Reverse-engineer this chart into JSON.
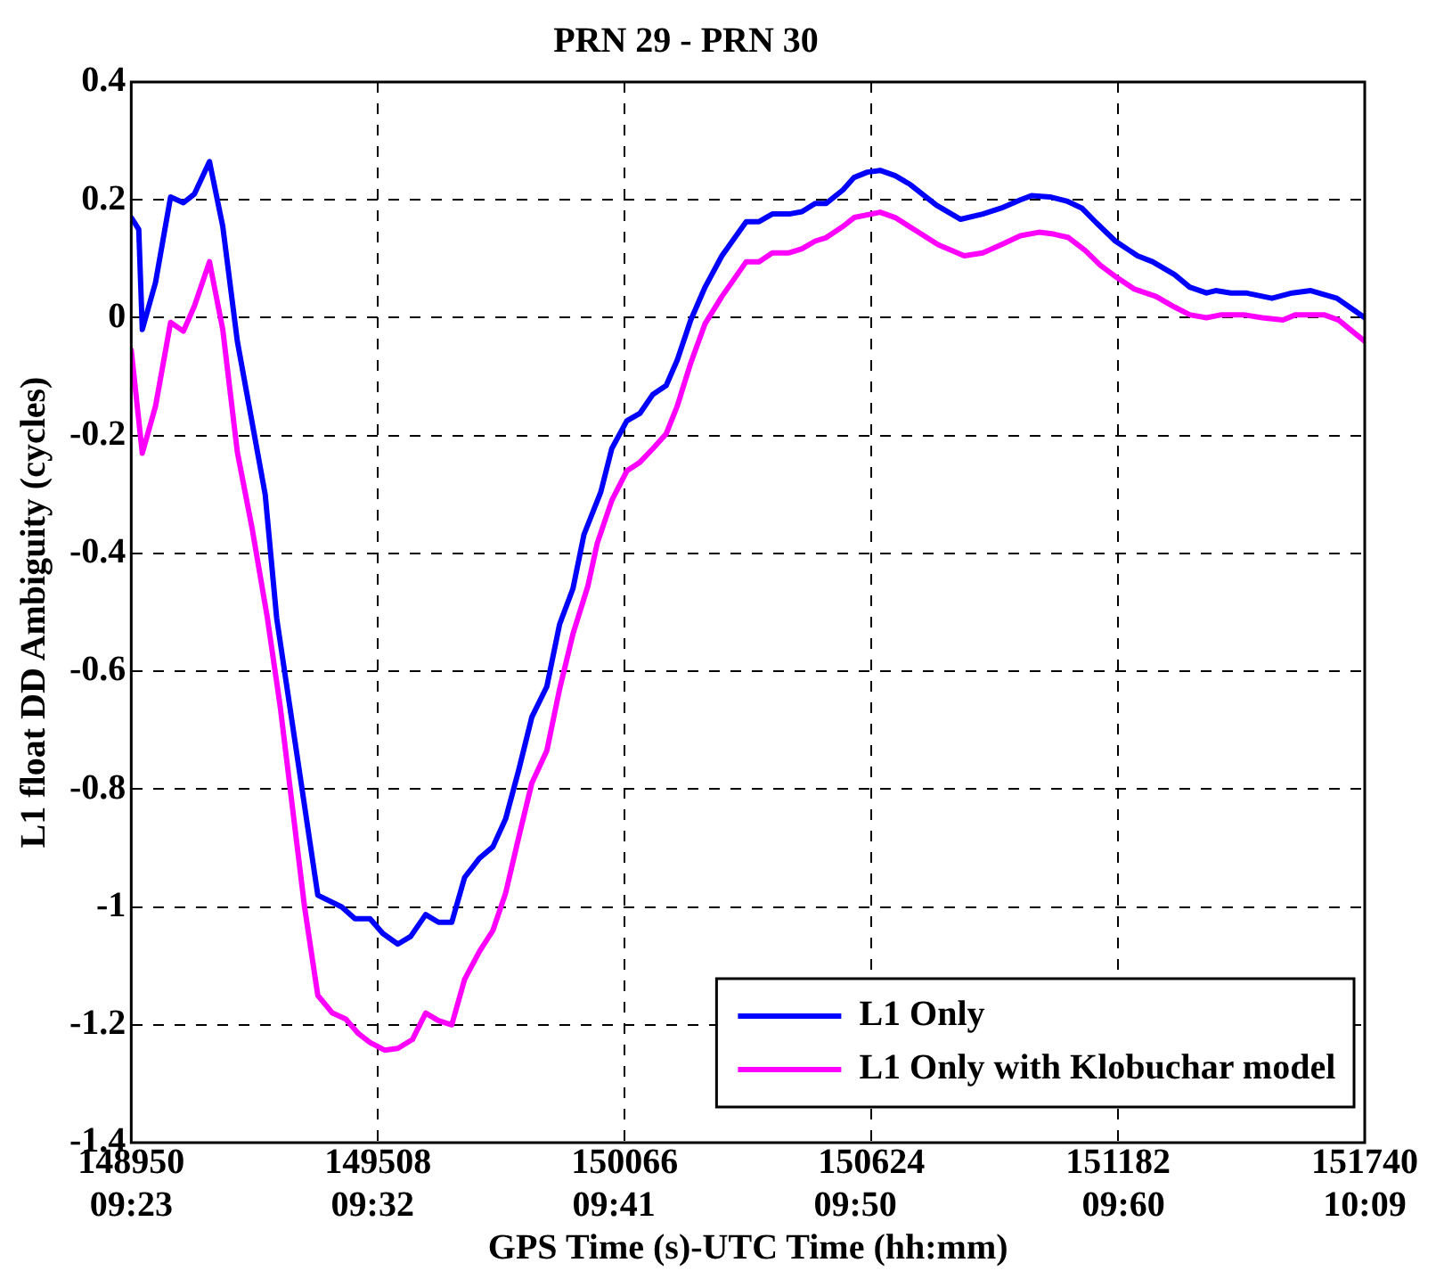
{
  "chart_data": {
    "type": "line",
    "title": "PRN 29 - PRN 30",
    "xlabel": "GPS Time (s)-UTC Time (hh:mm)",
    "ylabel": "L1 float DD Ambiguity (cycles)",
    "xlim": [
      148950,
      151740
    ],
    "xticks": [
      148950,
      149508,
      150066,
      150624,
      151182,
      151740
    ],
    "x2lim": [
      9.38333,
      10.15
    ],
    "x2ticks": [
      {
        "value": 9.38333,
        "label": "09:23"
      },
      {
        "value": 9.53333,
        "label": "09:32"
      },
      {
        "value": 9.68333,
        "label": "09:41"
      },
      {
        "value": 9.83333,
        "label": "09:50"
      },
      {
        "value": 10,
        "label": "09:60"
      },
      {
        "value": 10.15,
        "label": "10:09"
      }
    ],
    "ylim": [
      -1.4,
      0.4
    ],
    "yticks": [
      -1.4,
      -1.2,
      -1,
      -0.8,
      -0.6,
      -0.4,
      -0.2,
      0,
      0.2,
      0.4
    ],
    "grid": true,
    "legend": "bottom right",
    "line_style": "solid",
    "marker": "none",
    "series": [
      {
        "name": "L1 Only",
        "color": "#0000ff",
        "x": [
          148950,
          148967,
          148975,
          149005,
          149039,
          149068,
          149093,
          149127,
          149157,
          149190,
          149253,
          149279,
          149372,
          149426,
          149456,
          149490,
          149519,
          149553,
          149582,
          149616,
          149645,
          149675,
          149704,
          149738,
          149768,
          149797,
          149827,
          149856,
          149890,
          149919,
          149949,
          149974,
          150012,
          150037,
          150071,
          150101,
          150130,
          150160,
          150185,
          150215,
          150248,
          150286,
          150341,
          150370,
          150400,
          150438,
          150467,
          150497,
          150522,
          150560,
          150585,
          150615,
          150644,
          150678,
          150712,
          150771,
          150826,
          150876,
          150918,
          150961,
          150986,
          151028,
          151066,
          151100,
          151133,
          151176,
          151226,
          151260,
          151310,
          151344,
          151382,
          151403,
          151437,
          151471,
          151530,
          151576,
          151618,
          151677,
          151740
        ],
        "values": [
          0.17,
          0.15,
          -0.02,
          0.06,
          0.205,
          0.195,
          0.21,
          0.265,
          0.155,
          -0.04,
          -0.3,
          -0.51,
          -0.98,
          -1.0,
          -1.02,
          -1.02,
          -1.045,
          -1.063,
          -1.05,
          -1.013,
          -1.026,
          -1.026,
          -0.95,
          -0.917,
          -0.898,
          -0.85,
          -0.766,
          -0.678,
          -0.626,
          -0.52,
          -0.46,
          -0.368,
          -0.296,
          -0.222,
          -0.175,
          -0.162,
          -0.13,
          -0.115,
          -0.072,
          -0.005,
          0.052,
          0.105,
          0.163,
          0.163,
          0.176,
          0.176,
          0.18,
          0.194,
          0.194,
          0.217,
          0.238,
          0.247,
          0.25,
          0.241,
          0.226,
          0.191,
          0.167,
          0.176,
          0.186,
          0.2,
          0.207,
          0.205,
          0.198,
          0.186,
          0.161,
          0.13,
          0.105,
          0.095,
          0.073,
          0.052,
          0.042,
          0.046,
          0.042,
          0.042,
          0.033,
          0.042,
          0.046,
          0.033,
          0
        ]
      },
      {
        "name": "L1 Only with Klobuchar model",
        "color": "#ff00ff",
        "x": [
          148950,
          148975,
          149005,
          149039,
          149068,
          149093,
          149127,
          149157,
          149190,
          149224,
          149258,
          149287,
          149342,
          149372,
          149405,
          149435,
          149464,
          149490,
          149523,
          149553,
          149586,
          149616,
          149645,
          149675,
          149704,
          149738,
          149768,
          149797,
          149827,
          149856,
          149890,
          149919,
          149949,
          149983,
          150004,
          150037,
          150071,
          150101,
          150130,
          150160,
          150185,
          150215,
          150248,
          150286,
          150341,
          150370,
          150400,
          150438,
          150467,
          150497,
          150522,
          150560,
          150585,
          150644,
          150678,
          150720,
          150775,
          150834,
          150876,
          150918,
          150961,
          151003,
          151036,
          151070,
          151108,
          151142,
          151176,
          151218,
          151268,
          151310,
          151344,
          151382,
          151416,
          151466,
          151508,
          151555,
          151584,
          151648,
          151681,
          151740
        ],
        "values": [
          -0.055,
          -0.23,
          -0.15,
          -0.008,
          -0.023,
          0.02,
          0.095,
          -0.02,
          -0.228,
          -0.36,
          -0.51,
          -0.66,
          -1.0,
          -1.15,
          -1.18,
          -1.19,
          -1.215,
          -1.23,
          -1.243,
          -1.24,
          -1.225,
          -1.18,
          -1.193,
          -1.2,
          -1.123,
          -1.075,
          -1.04,
          -0.976,
          -0.88,
          -0.79,
          -0.735,
          -0.63,
          -0.537,
          -0.455,
          -0.383,
          -0.31,
          -0.26,
          -0.245,
          -0.222,
          -0.197,
          -0.15,
          -0.078,
          -0.01,
          0.036,
          0.095,
          0.095,
          0.11,
          0.11,
          0.117,
          0.13,
          0.136,
          0.155,
          0.17,
          0.179,
          0.17,
          0.15,
          0.124,
          0.105,
          0.11,
          0.124,
          0.139,
          0.145,
          0.142,
          0.136,
          0.114,
          0.089,
          0.07,
          0.049,
          0.036,
          0.018,
          0.005,
          0,
          0.005,
          0.005,
          0,
          -0.004,
          0.005,
          0.005,
          -0.004,
          -0.04
        ]
      }
    ]
  }
}
